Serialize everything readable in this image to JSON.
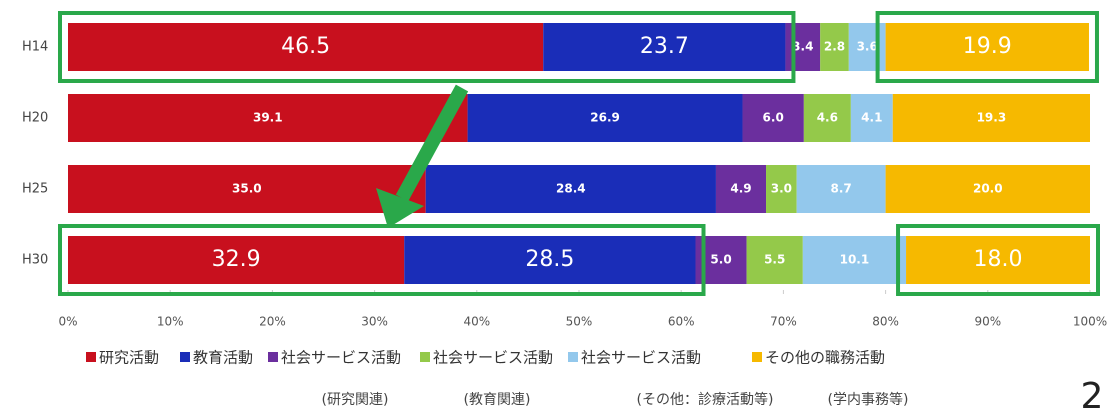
{
  "chart_data": {
    "type": "stacked-bar-horizontal",
    "categories": [
      "H14",
      "H20",
      "H25",
      "H30"
    ],
    "series": [
      {
        "name": "研究活動",
        "color": "#c8101e",
        "values": [
          46.5,
          39.1,
          35.0,
          32.9
        ],
        "value_labels": [
          "46.5",
          "39.1",
          "35.0",
          "32.9"
        ]
      },
      {
        "name": "教育活動",
        "color": "#1a2db8",
        "values": [
          23.7,
          26.9,
          28.4,
          28.5
        ],
        "value_labels": [
          "23.7",
          "26.9",
          "28.4",
          "28.5"
        ]
      },
      {
        "name": "社会サービス活動",
        "subname": "(研究関連)",
        "color": "#6b2f9e",
        "values": [
          3.4,
          6.0,
          4.9,
          5.0
        ],
        "value_labels": [
          "3.4",
          "6.0",
          "4.9",
          "5.0"
        ]
      },
      {
        "name": "社会サービス活動",
        "subname": "(教育関連)",
        "color": "#94c94a",
        "values": [
          2.8,
          4.6,
          3.0,
          5.5
        ],
        "value_labels": [
          "2.8",
          "4.6",
          "3.0",
          "5.5"
        ]
      },
      {
        "name": "社会サービス活動",
        "subname": "(その他：診療活動等)",
        "color": "#93c8ec",
        "values": [
          3.6,
          4.1,
          8.7,
          10.1
        ],
        "value_labels": [
          "3.6",
          "4.1",
          "8.7",
          "10.1"
        ]
      },
      {
        "name": "その他の職務活動",
        "subname": "(学内事務等)",
        "color": "#f6b900",
        "values": [
          19.9,
          19.3,
          20.0,
          18.0
        ],
        "value_labels": [
          "19.9",
          "19.3",
          "20.0",
          "18.0"
        ]
      }
    ],
    "xlim": [
      0,
      100
    ],
    "xticks": [
      {
        "value": 0,
        "label": "0%"
      },
      {
        "value": 10,
        "label": "10%"
      },
      {
        "value": 20,
        "label": "20%"
      },
      {
        "value": 30,
        "label": "30%"
      },
      {
        "value": 40,
        "label": "40%"
      },
      {
        "value": 50,
        "label": "50%"
      },
      {
        "value": 60,
        "label": "60%"
      },
      {
        "value": 70,
        "label": "70%"
      },
      {
        "value": 80,
        "label": "80%"
      },
      {
        "value": 90,
        "label": "90%"
      },
      {
        "value": 100,
        "label": "100%"
      }
    ],
    "page_number": "2"
  }
}
